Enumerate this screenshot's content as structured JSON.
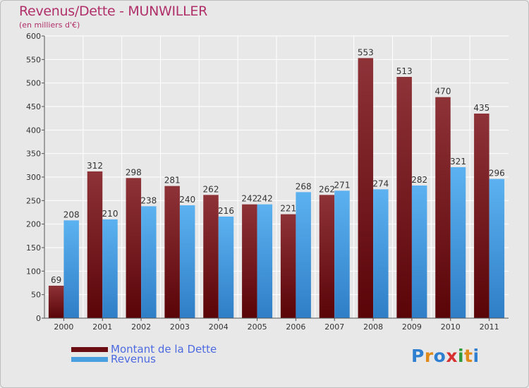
{
  "header": {
    "title": "Revenus/Dette - MUNWILLER",
    "subtitle": "(en milliers d'€)"
  },
  "legend": [
    {
      "label": "Montant de la Dette",
      "color": "#6b0d12"
    },
    {
      "label": "Revenus",
      "color": "#4a9fe0"
    }
  ],
  "logo": {
    "text": "Proxiti",
    "letters": [
      "P",
      "r",
      "o",
      "x",
      "i",
      "t",
      "i"
    ],
    "colors": [
      "#2f7fd0",
      "#e08a1a",
      "#2f7fd0",
      "#d63030",
      "#2f9a3a",
      "#e08a1a",
      "#2f7fd0"
    ]
  },
  "chart_data": {
    "type": "bar",
    "categories": [
      "2000",
      "2001",
      "2002",
      "2003",
      "2004",
      "2005",
      "2006",
      "2007",
      "2008",
      "2009",
      "2010",
      "2011"
    ],
    "series": [
      {
        "name": "Montant de la Dette",
        "values": [
          69,
          312,
          298,
          281,
          262,
          242,
          221,
          262,
          553,
          513,
          470,
          435
        ],
        "color": "#6b0d12"
      },
      {
        "name": "Revenus",
        "values": [
          208,
          210,
          238,
          240,
          216,
          242,
          268,
          271,
          274,
          282,
          321,
          296
        ],
        "color": "#4a9fe0"
      }
    ],
    "yticks": [
      "0",
      "50",
      "100",
      "150",
      "200",
      "250",
      "300",
      "350",
      "400",
      "450",
      "500",
      "550",
      "600"
    ],
    "ylim": [
      0,
      600
    ],
    "grid": true,
    "legend_position": "bottom-left"
  }
}
